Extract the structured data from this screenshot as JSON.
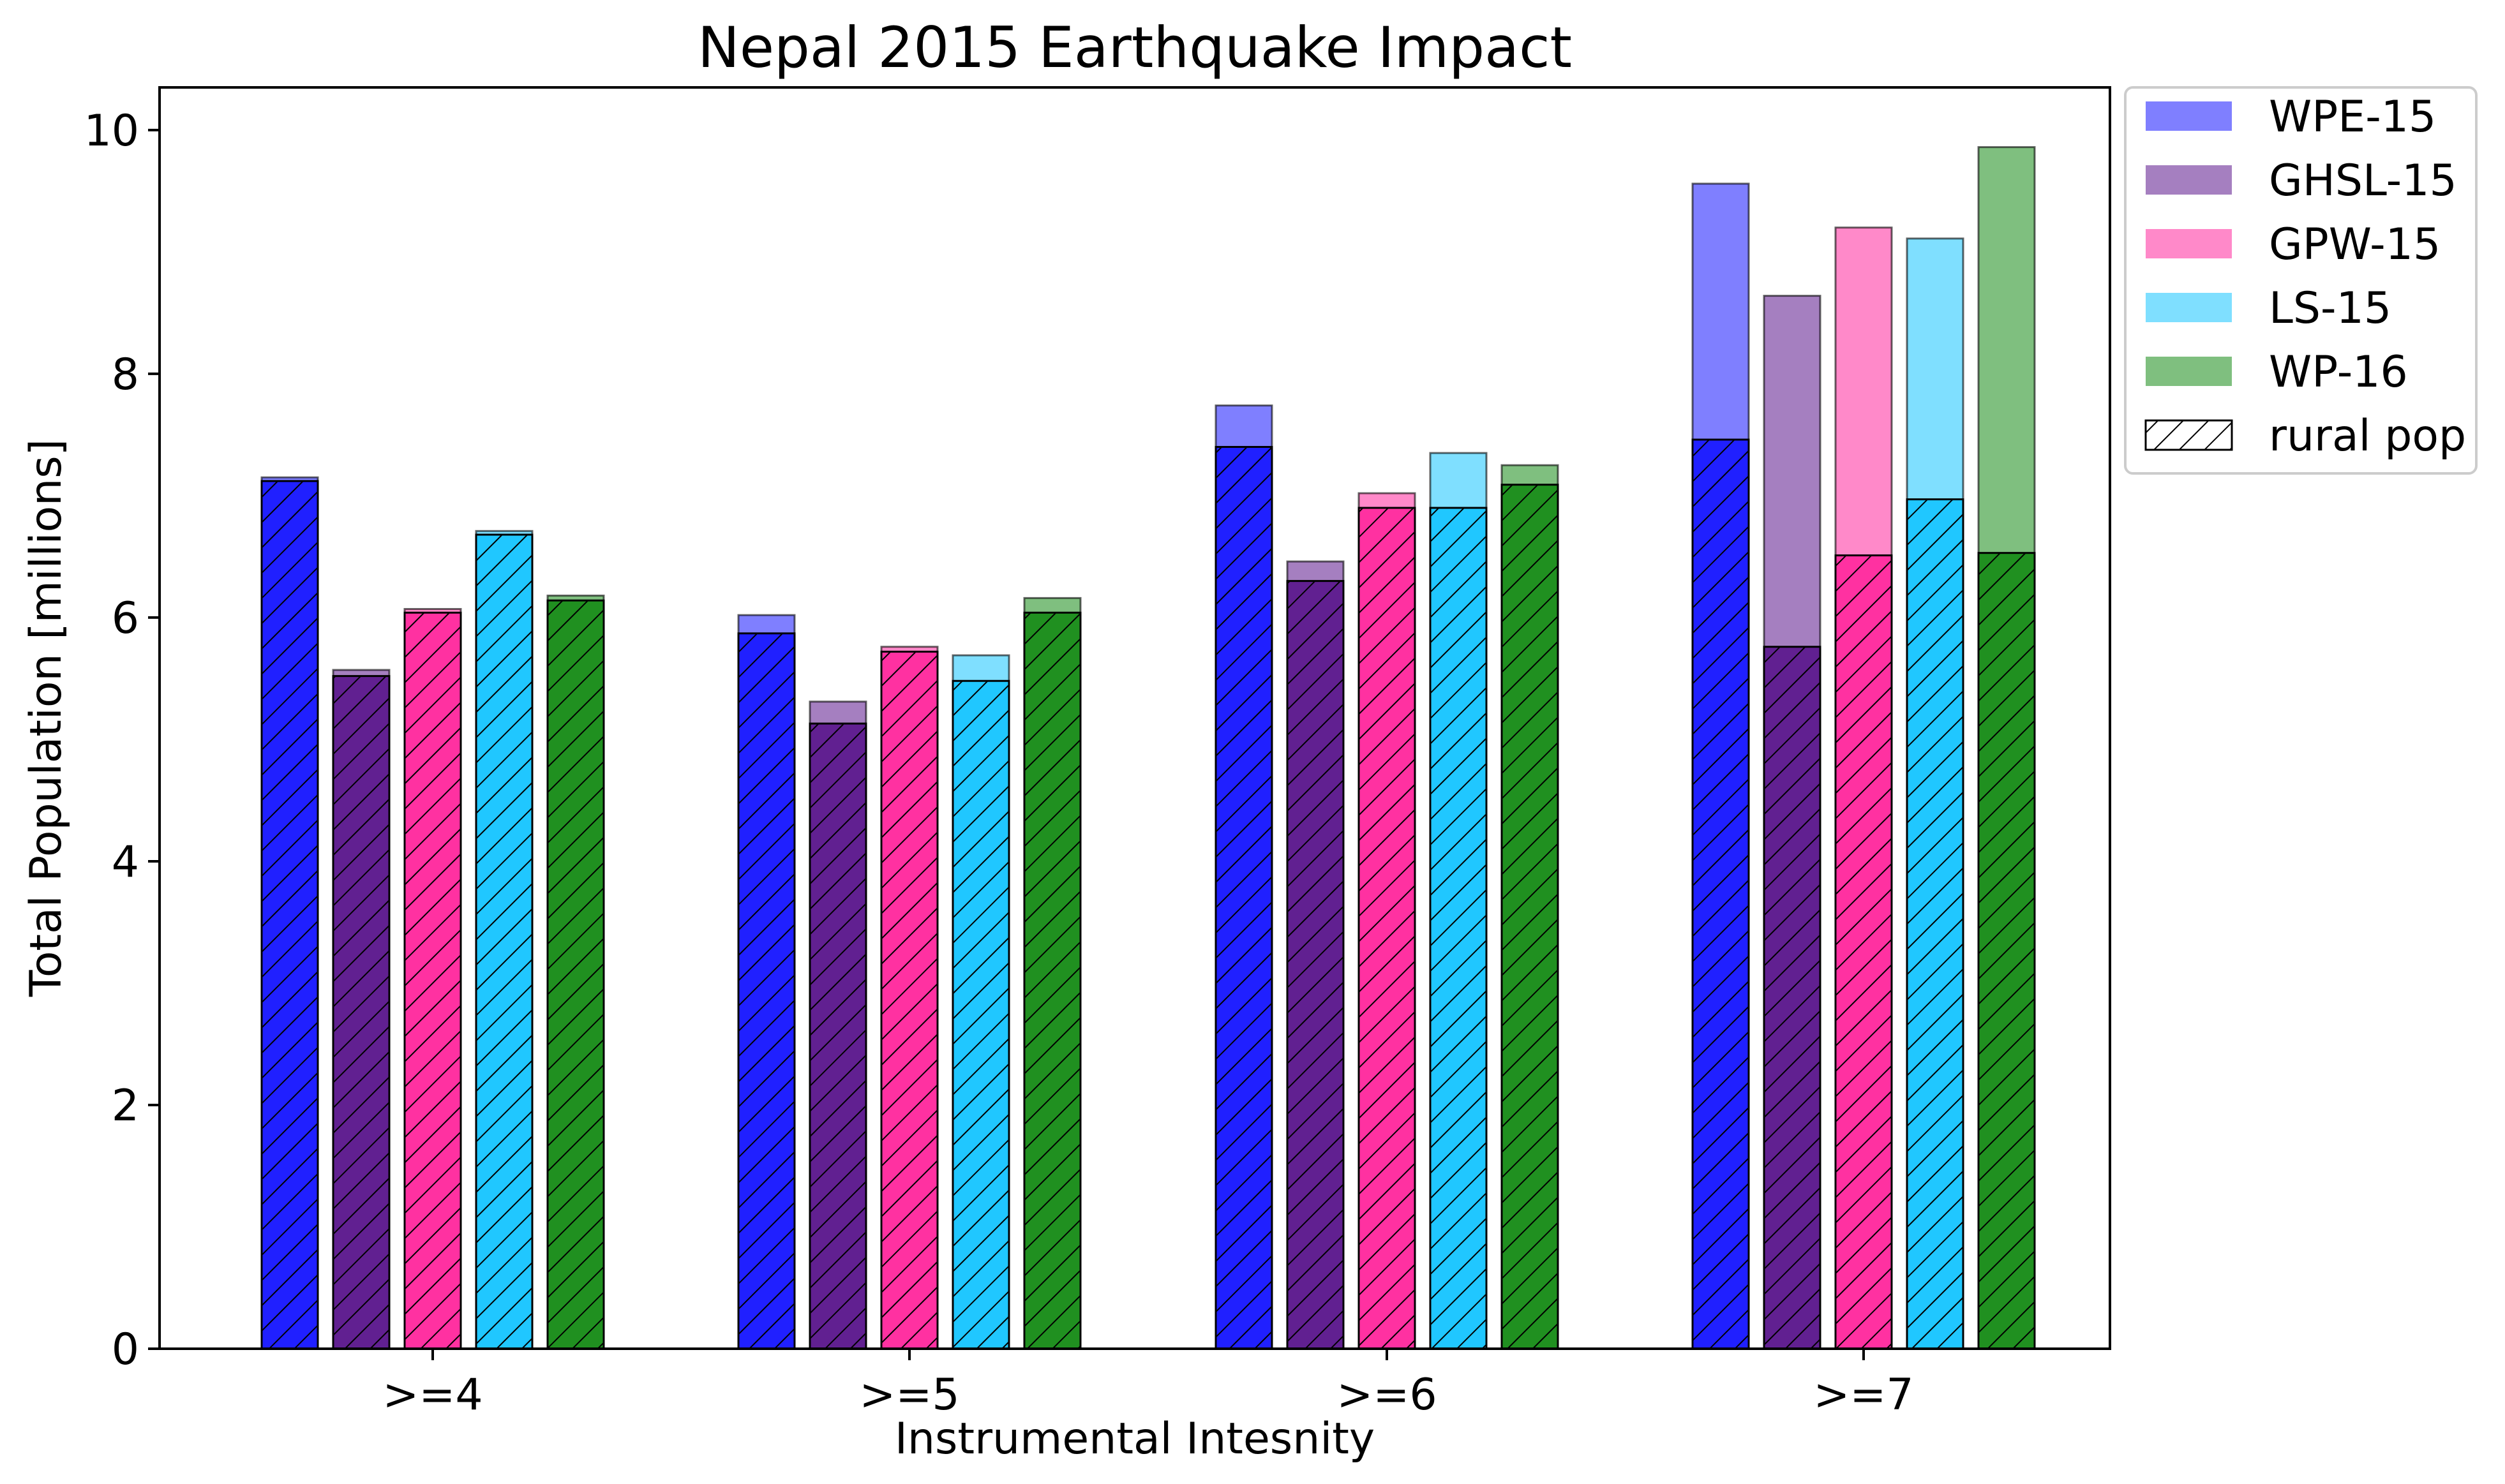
{
  "chart_data": {
    "type": "bar",
    "title": "Nepal 2015 Earthquake Impact",
    "xlabel": "Instrumental Intesnity",
    "ylabel": "Total Population [millions]",
    "ylim": [
      0,
      10.35
    ],
    "yticks": [
      0,
      2,
      4,
      6,
      8,
      10
    ],
    "categories": [
      ">=4",
      ">=5",
      ">=6",
      ">=7"
    ],
    "series": [
      {
        "name": "WPE-15",
        "color": "#0000ff",
        "total": [
          7.15,
          6.02,
          7.74,
          9.56
        ],
        "rural": [
          7.12,
          5.87,
          7.4,
          7.46
        ]
      },
      {
        "name": "GHSL-15",
        "color": "#4b0082",
        "total": [
          5.57,
          5.31,
          6.46,
          8.64
        ],
        "rural": [
          5.52,
          5.13,
          6.3,
          5.76
        ]
      },
      {
        "name": "GPW-15",
        "color": "#ff1493",
        "total": [
          6.07,
          5.76,
          7.02,
          9.2
        ],
        "rural": [
          6.04,
          5.72,
          6.9,
          6.51
        ]
      },
      {
        "name": "LS-15",
        "color": "#00bfff",
        "total": [
          6.71,
          5.69,
          7.35,
          9.11
        ],
        "rural": [
          6.68,
          5.48,
          6.9,
          6.97
        ]
      },
      {
        "name": "WP-16",
        "color": "#008000",
        "total": [
          6.18,
          6.16,
          7.25,
          9.86
        ],
        "rural": [
          6.14,
          6.04,
          7.09,
          6.53
        ]
      }
    ],
    "hatch_legend_label": "rural pop",
    "legend_position": "outside-right-top"
  }
}
